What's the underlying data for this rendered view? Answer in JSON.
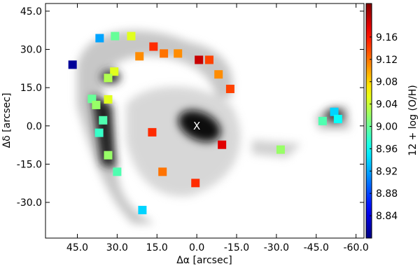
{
  "chart_data": {
    "type": "scatter",
    "xlabel": "Δα [arcsec]",
    "ylabel": "Δδ [arcsec]",
    "colorbar_label": "12 + log (O/H)",
    "annotation": "X",
    "xlim": [
      57,
      -63
    ],
    "ylim": [
      -44,
      48
    ],
    "xticks": [
      {
        "value": 45,
        "label": "45.0"
      },
      {
        "value": 30,
        "label": "30.0"
      },
      {
        "value": 15,
        "label": "15.0"
      },
      {
        "value": 0,
        "label": "0.0"
      },
      {
        "value": -15,
        "label": "-15.0"
      },
      {
        "value": -30,
        "label": "-30.0"
      },
      {
        "value": -45,
        "label": "-45.0"
      },
      {
        "value": -60,
        "label": "-60.0"
      }
    ],
    "yticks": [
      {
        "value": 45,
        "label": "45.0"
      },
      {
        "value": 30,
        "label": "30.0"
      },
      {
        "value": 15,
        "label": "15.0"
      },
      {
        "value": 0,
        "label": "0.0"
      },
      {
        "value": -15,
        "label": "-15.0"
      },
      {
        "value": -30,
        "label": "-30.0"
      }
    ],
    "clim": [
      8.8,
      9.22
    ],
    "colormap": "jet",
    "cticks": [
      9.16,
      9.12,
      9.08,
      9.04,
      {
        "value": 9,
        "label": "9.00"
      },
      8.96,
      8.92,
      8.88,
      8.84
    ],
    "series": [
      {
        "x": [
          46.8,
          36.6,
          30.8,
          24.7,
          16.3,
          12.4,
          21.6,
          7.1,
          -0.8,
          -4.7,
          -8.2,
          -12.6,
          31.1,
          33.4,
          39.5,
          37.9,
          33.4,
          35.3,
          36.8,
          33.4,
          30,
          20.5,
          16.8,
          12.9,
          0.5,
          -9.5,
          -31.6,
          -47.4,
          -51.8,
          -53.2
        ],
        "y": [
          24,
          34.4,
          35.2,
          35.2,
          31.1,
          28.4,
          27.3,
          28.4,
          25.9,
          25.9,
          20.2,
          14.5,
          21.3,
          18.8,
          10.6,
          8.2,
          10.4,
          2.2,
          -2.7,
          -11.5,
          -18,
          -33,
          -2.5,
          -18,
          -22.4,
          -7.4,
          -9.3,
          1.9,
          5.5,
          2.7
        ],
        "c": [
          8.81,
          8.92,
          9.0,
          9.05,
          9.15,
          9.12,
          9.11,
          9.11,
          9.19,
          9.14,
          9.11,
          9.14,
          9.05,
          9.03,
          9.0,
          9.02,
          9.05,
          8.99,
          8.98,
          9.02,
          8.99,
          8.94,
          9.15,
          9.12,
          9.15,
          9.18,
          9.02,
          8.99,
          8.94,
          8.96
        ]
      }
    ]
  }
}
